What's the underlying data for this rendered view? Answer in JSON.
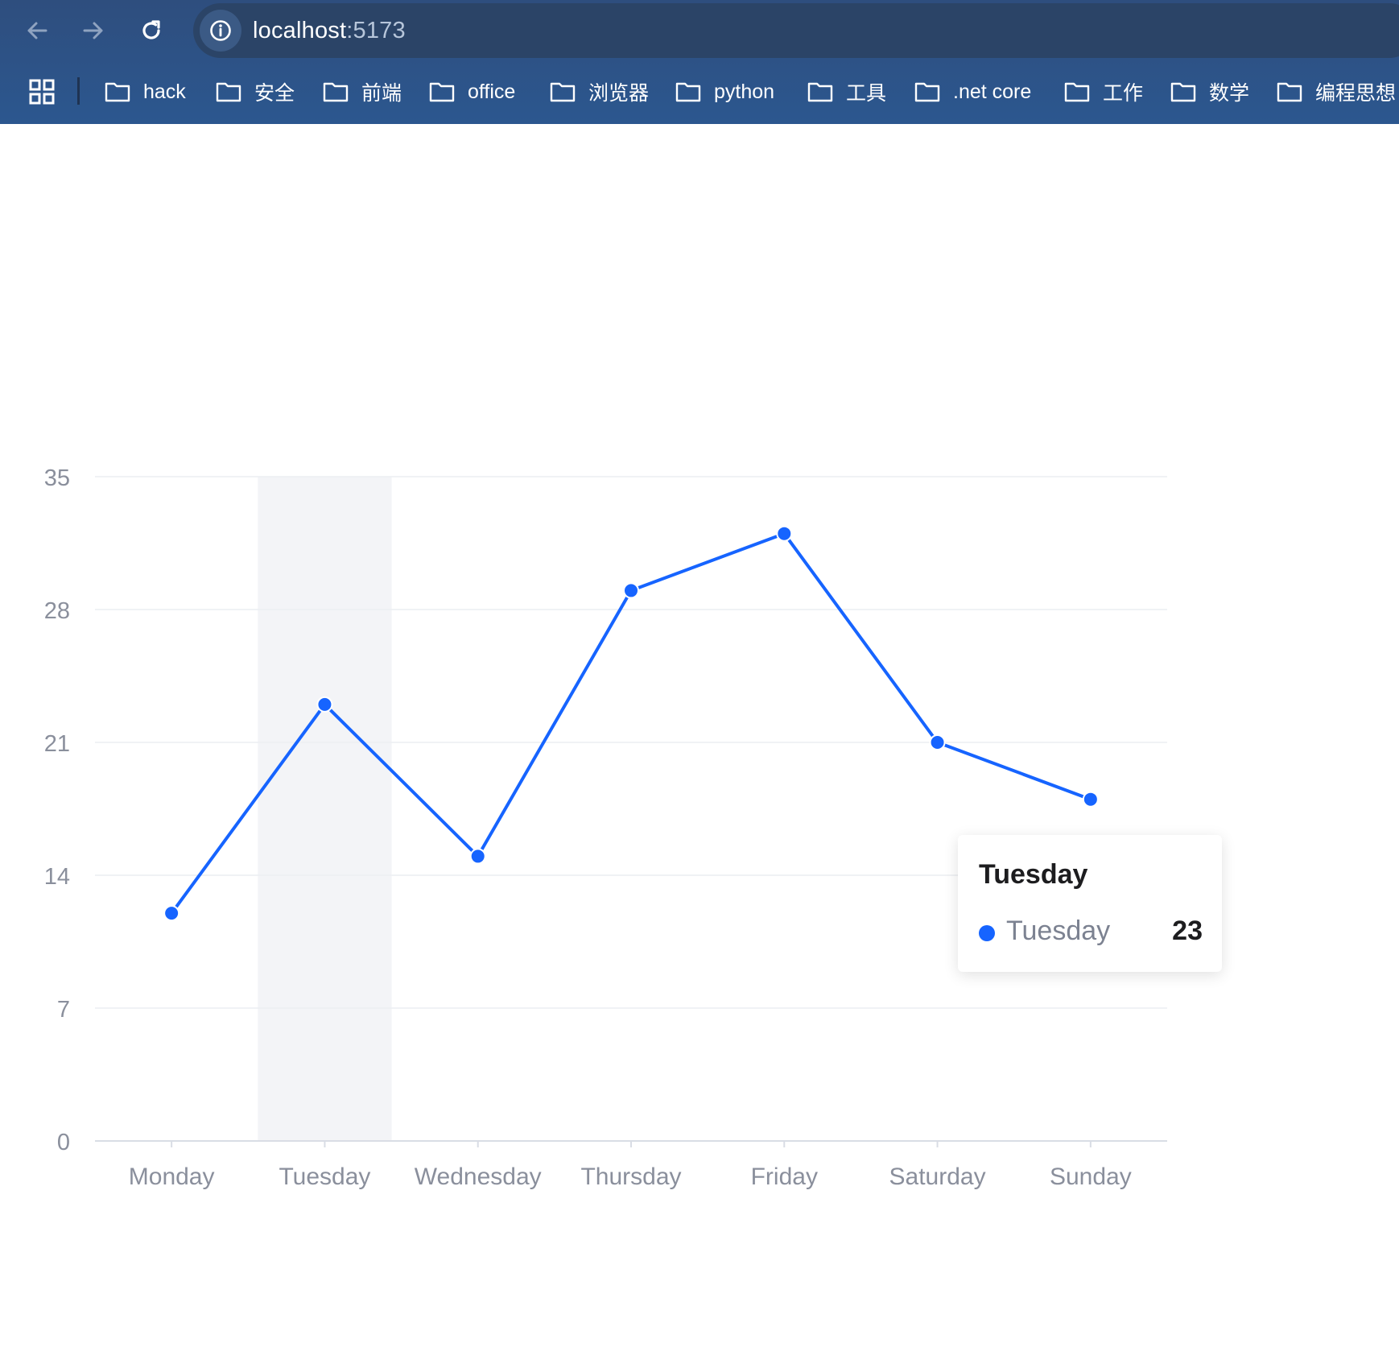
{
  "browser": {
    "url_host": "localhost",
    "url_port": ":5173",
    "bookmarks": [
      {
        "label": "hack"
      },
      {
        "label": "安全"
      },
      {
        "label": "前端"
      },
      {
        "label": "office"
      },
      {
        "label": "浏览器"
      },
      {
        "label": "python"
      },
      {
        "label": "工具"
      },
      {
        "label": ".net core"
      },
      {
        "label": "工作"
      },
      {
        "label": "数学"
      },
      {
        "label": "编程思想"
      }
    ]
  },
  "tooltip": {
    "title": "Tuesday",
    "series_label": "Tuesday",
    "value": "23"
  },
  "chart_data": {
    "type": "line",
    "categories": [
      "Monday",
      "Tuesday",
      "Wednesday",
      "Thursday",
      "Friday",
      "Saturday",
      "Sunday"
    ],
    "series": [
      {
        "values": [
          12,
          23,
          15,
          29,
          32,
          21,
          18
        ]
      }
    ],
    "ylim": [
      0,
      35
    ],
    "yticks": [
      0,
      7,
      14,
      21,
      28,
      35
    ],
    "highlighted_category": "Tuesday",
    "grid": true,
    "line_color": "#1664ff",
    "highlight_color": "#f3f4f7"
  }
}
